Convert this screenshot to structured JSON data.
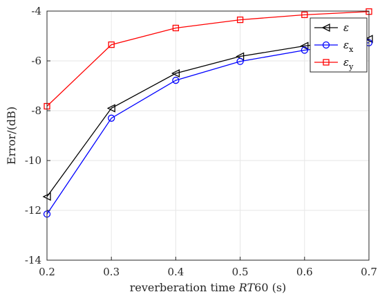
{
  "chart_data": {
    "type": "line",
    "title": "",
    "xlabel_prefix": "reverberation time ",
    "xlabel_italic": "RT",
    "xlabel_suffix": "60 (s)",
    "ylabel": "Error/(dB)",
    "x": [
      0.2,
      0.3,
      0.4,
      0.5,
      0.6,
      0.7
    ],
    "xlim": [
      0.2,
      0.7
    ],
    "ylim": [
      -14,
      -4
    ],
    "xticks": [
      "0.2",
      "0.3",
      "0.4",
      "0.5",
      "0.6",
      "0.7"
    ],
    "yticks": [
      "-4",
      "-6",
      "-8",
      "-10",
      "-12",
      "-14"
    ],
    "ytick_values": [
      -4,
      -6,
      -8,
      -10,
      -12,
      -14
    ],
    "grid": true,
    "legend_position": "top-right",
    "series": [
      {
        "name": "ε",
        "subscript": "",
        "color": "#000000",
        "marker": "triangle-left",
        "values": [
          -11.45,
          -7.9,
          -6.5,
          -5.82,
          -5.4,
          -5.12
        ]
      },
      {
        "name": "ε",
        "subscript": "x",
        "color": "#0000ff",
        "marker": "circle",
        "values": [
          -12.15,
          -8.3,
          -6.78,
          -6.02,
          -5.57,
          -5.27
        ]
      },
      {
        "name": "ε",
        "subscript": "y",
        "color": "#ff0000",
        "marker": "square",
        "values": [
          -7.82,
          -5.35,
          -4.68,
          -4.35,
          -4.15,
          -4.02
        ]
      }
    ]
  }
}
